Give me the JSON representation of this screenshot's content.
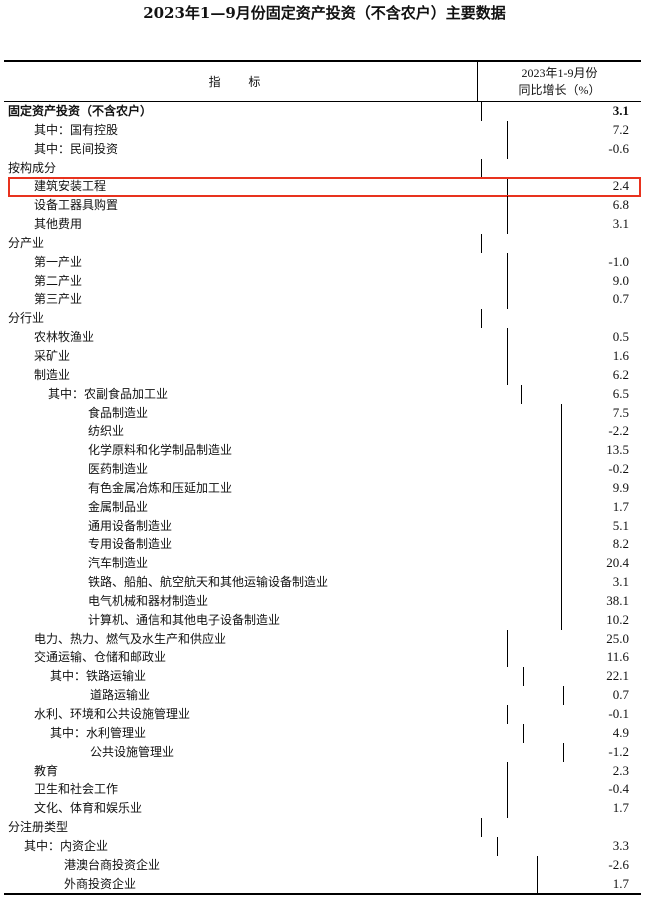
{
  "title": "2023年1—9月份固定资产投资（不含农户）主要数据",
  "header": {
    "indicator": "指 标",
    "period": "2023年1-9月份",
    "metric": "同比增长（%）"
  },
  "highlight_color": "#e8321e",
  "rows": [
    {
      "label": "固定资产投资（不含农户）",
      "value": "3.1",
      "level": 0,
      "bold": true
    },
    {
      "label": "其中：国有控股",
      "value": "7.2",
      "level": 1
    },
    {
      "label": "其中：民间投资",
      "value": "-0.6",
      "level": 1
    },
    {
      "label": "按构成分",
      "value": "",
      "level": 0
    },
    {
      "label": "建筑安装工程",
      "value": "2.4",
      "level": 1,
      "highlighted": true
    },
    {
      "label": "设备工器具购置",
      "value": "6.8",
      "level": 1
    },
    {
      "label": "其他费用",
      "value": "3.1",
      "level": 1
    },
    {
      "label": "分产业",
      "value": "",
      "level": 0
    },
    {
      "label": "第一产业",
      "value": "-1.0",
      "level": 1
    },
    {
      "label": "第二产业",
      "value": "9.0",
      "level": 1
    },
    {
      "label": "第三产业",
      "value": "0.7",
      "level": 1
    },
    {
      "label": "分行业",
      "value": "",
      "level": 0
    },
    {
      "label": "农林牧渔业",
      "value": "0.5",
      "level": 1
    },
    {
      "label": "采矿业",
      "value": "1.6",
      "level": 1
    },
    {
      "label": "制造业",
      "value": "6.2",
      "level": 1
    },
    {
      "label": "其中：农副食品加工业",
      "value": "6.5",
      "level": 2
    },
    {
      "label": "食品制造业",
      "value": "7.5",
      "level": 3
    },
    {
      "label": "纺织业",
      "value": "-2.2",
      "level": 3
    },
    {
      "label": "化学原料和化学制品制造业",
      "value": "13.5",
      "level": 3
    },
    {
      "label": "医药制造业",
      "value": "-0.2",
      "level": 3
    },
    {
      "label": "有色金属冶炼和压延加工业",
      "value": "9.9",
      "level": 3
    },
    {
      "label": "金属制品业",
      "value": "1.7",
      "level": 3
    },
    {
      "label": "通用设备制造业",
      "value": "5.1",
      "level": 3
    },
    {
      "label": "专用设备制造业",
      "value": "8.2",
      "level": 3
    },
    {
      "label": "汽车制造业",
      "value": "20.4",
      "level": 3
    },
    {
      "label": "铁路、船舶、航空航天和其他运输设备制造业",
      "value": "3.1",
      "level": 3
    },
    {
      "label": "电气机械和器材制造业",
      "value": "38.1",
      "level": 3
    },
    {
      "label": "计算机、通信和其他电子设备制造业",
      "value": "10.2",
      "level": 3
    },
    {
      "label": "电力、热力、燃气及水生产和供应业",
      "value": "25.0",
      "level": 1
    },
    {
      "label": "交通运输、仓储和邮政业",
      "value": "11.6",
      "level": 1
    },
    {
      "label": "其中：铁路运输业",
      "value": "22.1",
      "level": 4
    },
    {
      "label": "道路运输业",
      "value": "0.7",
      "level": 5
    },
    {
      "label": "水利、环境和公共设施管理业",
      "value": "-0.1",
      "level": 1
    },
    {
      "label": "其中：水利管理业",
      "value": "4.9",
      "level": 4
    },
    {
      "label": "公共设施管理业",
      "value": "-1.2",
      "level": 5
    },
    {
      "label": "教育",
      "value": "2.3",
      "level": 1
    },
    {
      "label": "卫生和社会工作",
      "value": "-0.4",
      "level": 1
    },
    {
      "label": "文化、体育和娱乐业",
      "value": "1.7",
      "level": 1
    },
    {
      "label": "分注册类型",
      "value": "",
      "level": 0
    },
    {
      "label": "其中：内资企业",
      "value": "3.3",
      "level": 6
    },
    {
      "label": "港澳台商投资企业",
      "value": "-2.6",
      "level": 7
    },
    {
      "label": "外商投资企业",
      "value": "1.7",
      "level": 7
    }
  ]
}
